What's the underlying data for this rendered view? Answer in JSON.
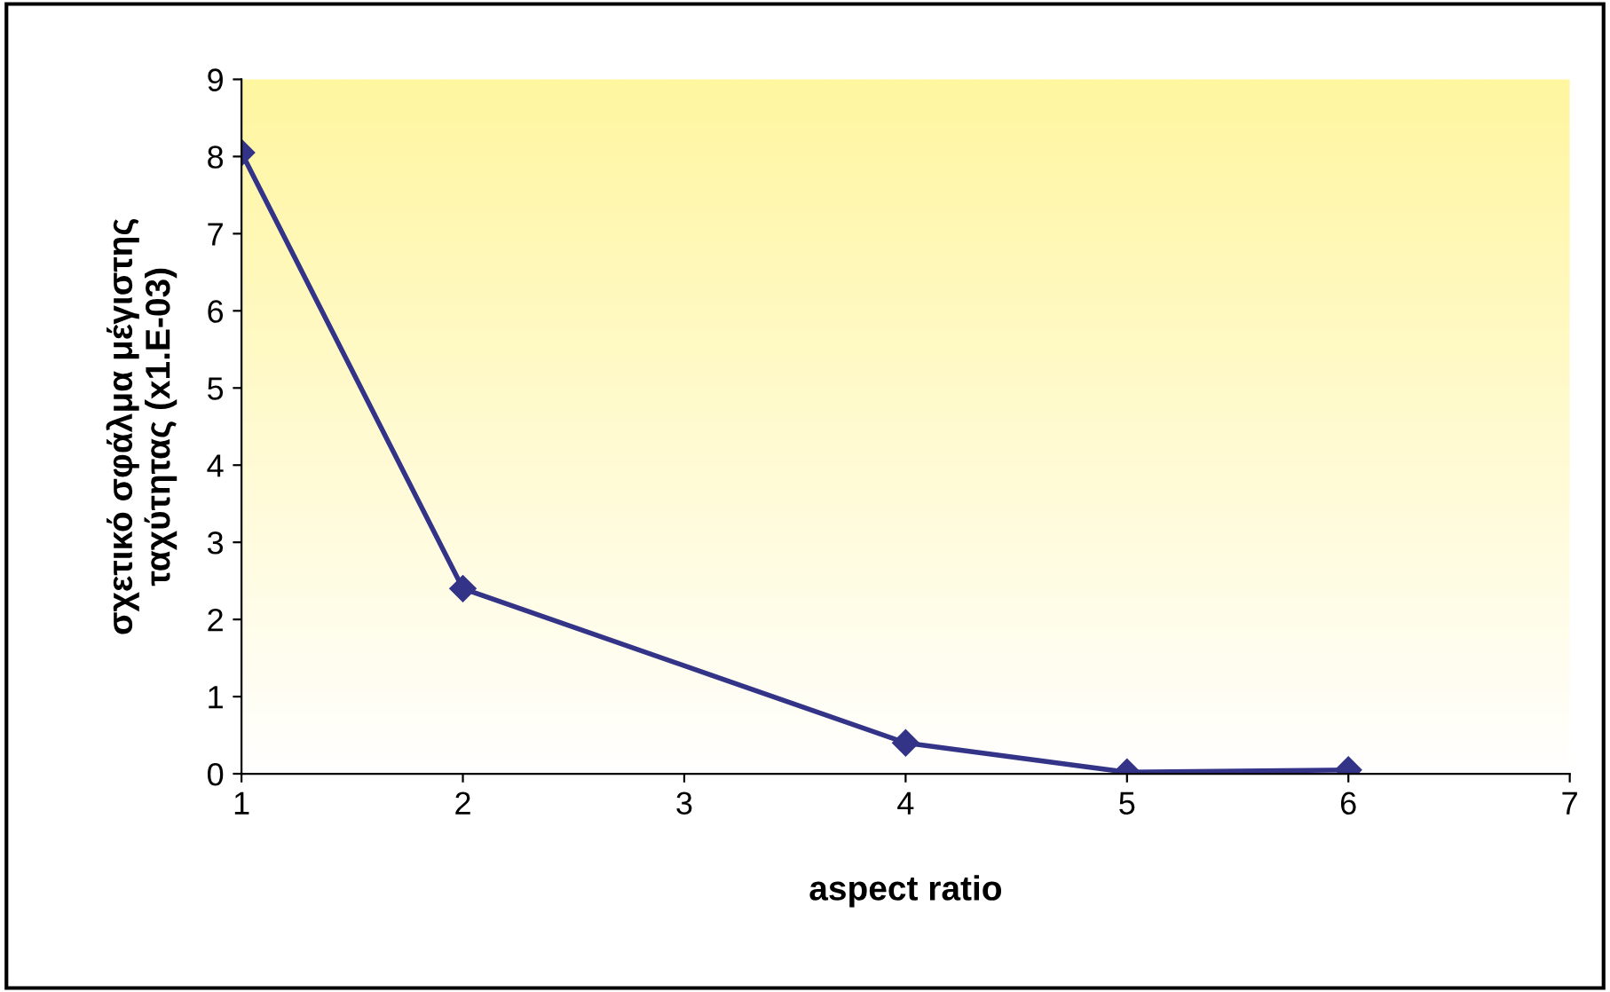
{
  "chart_data": {
    "type": "line",
    "xlabel": "aspect ratio",
    "ylabel": "σχετικό σφάλμα μέγιστης\nταχύτητας (x1.E-03)",
    "x": [
      1,
      2,
      4,
      5,
      6
    ],
    "series": [
      {
        "color": "#333388",
        "values": [
          8.05,
          2.4,
          0.4,
          0.02,
          0.05
        ]
      }
    ],
    "xlim": [
      1,
      7
    ],
    "xticks": [
      1,
      2,
      3,
      4,
      5,
      6,
      7
    ],
    "ylim": [
      0,
      9
    ],
    "yticks": [
      0,
      1,
      2,
      3,
      4,
      5,
      6,
      7,
      8,
      9
    ],
    "grid": false,
    "legend": false,
    "marker": "diamond",
    "line_style": "solid"
  }
}
